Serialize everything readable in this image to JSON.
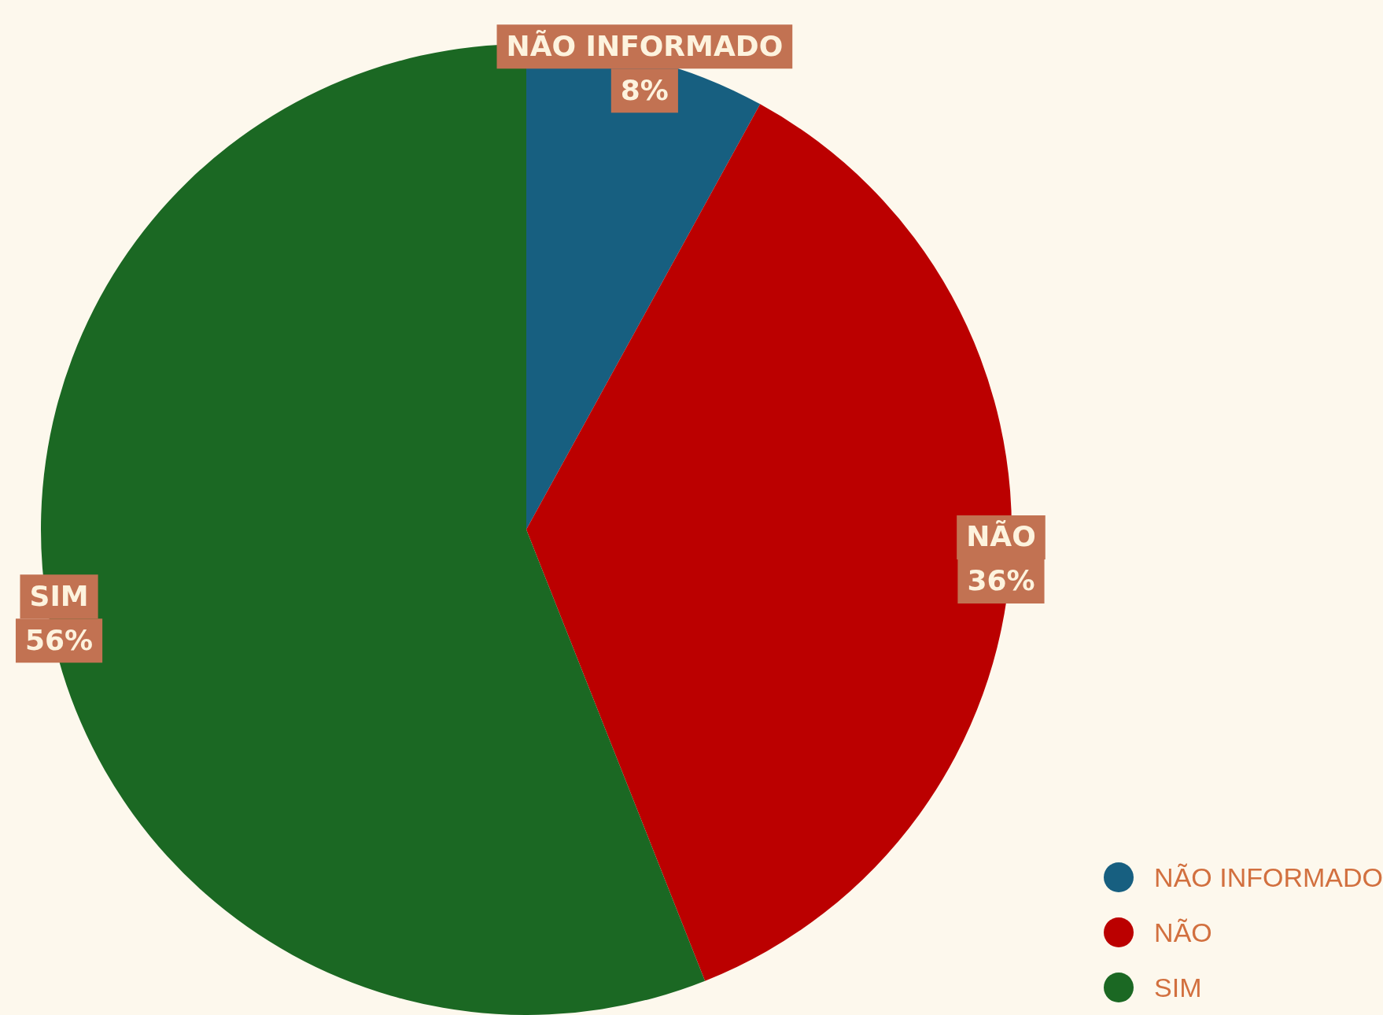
{
  "chart_data": {
    "type": "pie",
    "categories": [
      "NÃO INFORMADO",
      "NÃO",
      "SIM"
    ],
    "values": [
      8,
      36,
      56
    ],
    "value_labels": [
      "8%",
      "36%",
      "56%"
    ],
    "colors": [
      "#175f80",
      "#bb0000",
      "#1b6823"
    ],
    "legend": "bottom right"
  }
}
